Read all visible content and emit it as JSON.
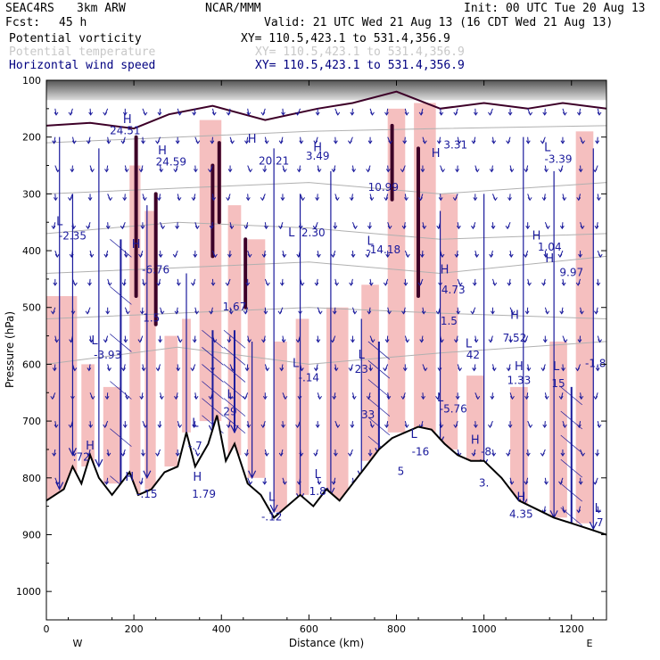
{
  "header": {
    "project": "SEAC4RS",
    "model": "3km ARW",
    "org": "NCAR/MMM",
    "init": "Init: 00 UTC Tue 20 Aug 13",
    "fcst_label": "Fcst:",
    "fcst_value": "45 h",
    "valid": "Valid: 21 UTC Wed 21 Aug 13 (16 CDT Wed 21 Aug 13)"
  },
  "fields": [
    {
      "name": "Potential vorticity",
      "xy": "XY= 110.5,423.1 to 531.4,356.9",
      "color": "#000000"
    },
    {
      "name": "Potential temperature",
      "xy": "XY= 110.5,423.1 to 531.4,356.9",
      "color": "#c8c8c8"
    },
    {
      "name": "Horizontal wind speed",
      "xy": "XY= 110.5,423.1 to 531.4,356.9",
      "color": "#000080"
    }
  ],
  "colors": {
    "wind_vectors": "#1a1a9c",
    "pv_shading": "#f4b8b8",
    "pv_contour": "#3d0028",
    "theta_contour": "#b0b0b0",
    "terrain": "#000000"
  },
  "chart_data": {
    "type": "cross-section",
    "xlabel": "Distance (km)",
    "ylabel": "Pressure (hPa)",
    "x_range": [
      0,
      1280
    ],
    "y_range": [
      1050,
      100
    ],
    "x_ticks": [
      "0",
      "200",
      "400",
      "600",
      "800",
      "1000",
      "1200"
    ],
    "y_ticks": [
      "100",
      "200",
      "300",
      "400",
      "500",
      "600",
      "700",
      "800",
      "900",
      "1000"
    ],
    "x_end_labels": {
      "left": "W",
      "right": "E"
    },
    "terrain_pressure": [
      {
        "x": 0,
        "p": 840
      },
      {
        "x": 40,
        "p": 820
      },
      {
        "x": 60,
        "p": 780
      },
      {
        "x": 80,
        "p": 810
      },
      {
        "x": 100,
        "p": 760
      },
      {
        "x": 120,
        "p": 800
      },
      {
        "x": 150,
        "p": 830
      },
      {
        "x": 170,
        "p": 810
      },
      {
        "x": 190,
        "p": 790
      },
      {
        "x": 210,
        "p": 830
      },
      {
        "x": 240,
        "p": 820
      },
      {
        "x": 270,
        "p": 790
      },
      {
        "x": 300,
        "p": 780
      },
      {
        "x": 320,
        "p": 720
      },
      {
        "x": 340,
        "p": 780
      },
      {
        "x": 370,
        "p": 740
      },
      {
        "x": 390,
        "p": 690
      },
      {
        "x": 410,
        "p": 770
      },
      {
        "x": 430,
        "p": 740
      },
      {
        "x": 460,
        "p": 810
      },
      {
        "x": 490,
        "p": 830
      },
      {
        "x": 520,
        "p": 870
      },
      {
        "x": 550,
        "p": 850
      },
      {
        "x": 580,
        "p": 830
      },
      {
        "x": 610,
        "p": 850
      },
      {
        "x": 640,
        "p": 820
      },
      {
        "x": 670,
        "p": 840
      },
      {
        "x": 700,
        "p": 810
      },
      {
        "x": 730,
        "p": 780
      },
      {
        "x": 760,
        "p": 750
      },
      {
        "x": 790,
        "p": 730
      },
      {
        "x": 820,
        "p": 720
      },
      {
        "x": 850,
        "p": 710
      },
      {
        "x": 880,
        "p": 715
      },
      {
        "x": 910,
        "p": 740
      },
      {
        "x": 940,
        "p": 760
      },
      {
        "x": 970,
        "p": 770
      },
      {
        "x": 1000,
        "p": 770
      },
      {
        "x": 1040,
        "p": 800
      },
      {
        "x": 1080,
        "p": 840
      },
      {
        "x": 1120,
        "p": 855
      },
      {
        "x": 1160,
        "p": 870
      },
      {
        "x": 1200,
        "p": 880
      },
      {
        "x": 1240,
        "p": 890
      },
      {
        "x": 1280,
        "p": 900
      }
    ],
    "theta_isentropes": [
      {
        "points": [
          {
            "x": 0,
            "p": 210
          },
          {
            "x": 300,
            "p": 200
          },
          {
            "x": 600,
            "p": 190
          },
          {
            "x": 900,
            "p": 185
          },
          {
            "x": 1280,
            "p": 180
          }
        ]
      },
      {
        "points": [
          {
            "x": 0,
            "p": 300
          },
          {
            "x": 300,
            "p": 290
          },
          {
            "x": 600,
            "p": 280
          },
          {
            "x": 900,
            "p": 300
          },
          {
            "x": 1280,
            "p": 280
          }
        ]
      },
      {
        "points": [
          {
            "x": 0,
            "p": 370
          },
          {
            "x": 300,
            "p": 350
          },
          {
            "x": 600,
            "p": 360
          },
          {
            "x": 900,
            "p": 380
          },
          {
            "x": 1280,
            "p": 370
          }
        ]
      },
      {
        "points": [
          {
            "x": 0,
            "p": 440
          },
          {
            "x": 300,
            "p": 430
          },
          {
            "x": 600,
            "p": 420
          },
          {
            "x": 900,
            "p": 440
          },
          {
            "x": 1280,
            "p": 410
          }
        ]
      },
      {
        "points": [
          {
            "x": 0,
            "p": 520
          },
          {
            "x": 300,
            "p": 510
          },
          {
            "x": 600,
            "p": 500
          },
          {
            "x": 900,
            "p": 510
          },
          {
            "x": 1280,
            "p": 520
          }
        ]
      },
      {
        "points": [
          {
            "x": 0,
            "p": 600
          },
          {
            "x": 300,
            "p": 570
          },
          {
            "x": 600,
            "p": 600
          },
          {
            "x": 900,
            "p": 580
          },
          {
            "x": 1280,
            "p": 560
          }
        ]
      }
    ],
    "pv_shading_regions": [
      {
        "x0": 0,
        "x1": 70,
        "p0": 480,
        "p1": 840
      },
      {
        "x0": 80,
        "x1": 110,
        "p0": 600,
        "p1": 780
      },
      {
        "x0": 130,
        "x1": 170,
        "p0": 640,
        "p1": 810
      },
      {
        "x0": 190,
        "x1": 215,
        "p0": 250,
        "p1": 830
      },
      {
        "x0": 225,
        "x1": 250,
        "p0": 330,
        "p1": 820
      },
      {
        "x0": 270,
        "x1": 300,
        "p0": 550,
        "p1": 780
      },
      {
        "x0": 310,
        "x1": 330,
        "p0": 520,
        "p1": 720
      },
      {
        "x0": 350,
        "x1": 400,
        "p0": 170,
        "p1": 700
      },
      {
        "x0": 415,
        "x1": 445,
        "p0": 320,
        "p1": 760
      },
      {
        "x0": 460,
        "x1": 500,
        "p0": 380,
        "p1": 800
      },
      {
        "x0": 520,
        "x1": 550,
        "p0": 560,
        "p1": 860
      },
      {
        "x0": 570,
        "x1": 600,
        "p0": 520,
        "p1": 830
      },
      {
        "x0": 640,
        "x1": 690,
        "p0": 500,
        "p1": 840
      },
      {
        "x0": 720,
        "x1": 760,
        "p0": 460,
        "p1": 770
      },
      {
        "x0": 780,
        "x1": 820,
        "p0": 150,
        "p1": 720
      },
      {
        "x0": 840,
        "x1": 890,
        "p0": 140,
        "p1": 720
      },
      {
        "x0": 900,
        "x1": 940,
        "p0": 300,
        "p1": 750
      },
      {
        "x0": 960,
        "x1": 1000,
        "p0": 620,
        "p1": 780
      },
      {
        "x0": 1060,
        "x1": 1100,
        "p0": 640,
        "p1": 850
      },
      {
        "x0": 1150,
        "x1": 1190,
        "p0": 560,
        "p1": 870
      },
      {
        "x0": 1210,
        "x1": 1250,
        "p0": 190,
        "p1": 880
      }
    ],
    "pv_contours": [
      {
        "points": [
          {
            "x": 0,
            "p": 180
          },
          {
            "x": 100,
            "p": 175
          },
          {
            "x": 200,
            "p": 185
          },
          {
            "x": 280,
            "p": 160
          },
          {
            "x": 380,
            "p": 145
          },
          {
            "x": 500,
            "p": 170
          },
          {
            "x": 620,
            "p": 150
          },
          {
            "x": 700,
            "p": 140
          },
          {
            "x": 800,
            "p": 120
          },
          {
            "x": 900,
            "p": 150
          },
          {
            "x": 1000,
            "p": 140
          },
          {
            "x": 1100,
            "p": 150
          },
          {
            "x": 1180,
            "p": 140
          },
          {
            "x": 1280,
            "p": 150
          }
        ]
      },
      {
        "points": [
          {
            "x": 205,
            "p": 200
          },
          {
            "x": 205,
            "p": 480
          }
        ]
      },
      {
        "points": [
          {
            "x": 250,
            "p": 300
          },
          {
            "x": 250,
            "p": 530
          }
        ]
      },
      {
        "points": [
          {
            "x": 380,
            "p": 250
          },
          {
            "x": 380,
            "p": 410
          }
        ]
      },
      {
        "points": [
          {
            "x": 395,
            "p": 210
          },
          {
            "x": 395,
            "p": 350
          }
        ]
      },
      {
        "points": [
          {
            "x": 455,
            "p": 380
          },
          {
            "x": 455,
            "p": 500
          }
        ]
      },
      {
        "points": [
          {
            "x": 790,
            "p": 180
          },
          {
            "x": 790,
            "p": 310
          }
        ]
      },
      {
        "points": [
          {
            "x": 850,
            "p": 220
          },
          {
            "x": 850,
            "p": 480
          }
        ]
      }
    ],
    "wind_columns": [
      {
        "x": 30,
        "top": 200,
        "bottom": 820,
        "strong": false
      },
      {
        "x": 60,
        "top": 300,
        "bottom": 760,
        "strong": false
      },
      {
        "x": 120,
        "top": 220,
        "bottom": 780,
        "strong": false
      },
      {
        "x": 170,
        "top": 380,
        "bottom": 880,
        "strong": true
      },
      {
        "x": 230,
        "top": 320,
        "bottom": 800,
        "strong": false
      },
      {
        "x": 320,
        "top": 440,
        "bottom": 760,
        "strong": false
      },
      {
        "x": 380,
        "top": 540,
        "bottom": 720,
        "strong": true
      },
      {
        "x": 430,
        "top": 540,
        "bottom": 720,
        "strong": true
      },
      {
        "x": 470,
        "top": 560,
        "bottom": 800,
        "strong": false
      },
      {
        "x": 520,
        "top": 220,
        "bottom": 860,
        "strong": false
      },
      {
        "x": 580,
        "top": 300,
        "bottom": 840,
        "strong": false
      },
      {
        "x": 650,
        "top": 260,
        "bottom": 830,
        "strong": false
      },
      {
        "x": 720,
        "top": 520,
        "bottom": 800,
        "strong": false
      },
      {
        "x": 760,
        "top": 560,
        "bottom": 760,
        "strong": true
      },
      {
        "x": 900,
        "top": 330,
        "bottom": 740,
        "strong": false
      },
      {
        "x": 1000,
        "top": 300,
        "bottom": 780,
        "strong": false
      },
      {
        "x": 1090,
        "top": 200,
        "bottom": 850,
        "strong": false
      },
      {
        "x": 1160,
        "top": 260,
        "bottom": 870,
        "strong": false
      },
      {
        "x": 1200,
        "top": 640,
        "bottom": 895,
        "strong": true
      },
      {
        "x": 1250,
        "top": 220,
        "bottom": 890,
        "strong": false
      }
    ],
    "annotations": [
      {
        "text": "H",
        "x": 185,
        "p": 175
      },
      {
        "text": "24.51",
        "x": 180,
        "p": 195
      },
      {
        "text": "H",
        "x": 265,
        "p": 230
      },
      {
        "text": "24.59",
        "x": 285,
        "p": 250
      },
      {
        "text": "L",
        "x": 30,
        "p": 355
      },
      {
        "text": "-2.35",
        "x": 60,
        "p": 380
      },
      {
        "text": "-6.76",
        "x": 250,
        "p": 440
      },
      {
        "text": "1.5",
        "x": 240,
        "p": 525
      },
      {
        "text": "L",
        "x": 110,
        "p": 565
      },
      {
        "text": "-3.93",
        "x": 140,
        "p": 590
      },
      {
        "text": "H",
        "x": 205,
        "p": 395
      },
      {
        "text": "1.67",
        "x": 430,
        "p": 505
      },
      {
        "text": "H",
        "x": 470,
        "p": 210
      },
      {
        "text": "20.21",
        "x": 520,
        "p": 248
      },
      {
        "text": "3.49",
        "x": 620,
        "p": 240
      },
      {
        "text": "2.30",
        "x": 610,
        "p": 375
      },
      {
        "text": "H",
        "x": 620,
        "p": 225
      },
      {
        "text": "L",
        "x": 560,
        "p": 375
      },
      {
        "text": "L",
        "x": 740,
        "p": 390
      },
      {
        "text": "-14.18",
        "x": 770,
        "p": 405
      },
      {
        "text": "10.99",
        "x": 770,
        "p": 295
      },
      {
        "text": "3.31",
        "x": 935,
        "p": 220
      },
      {
        "text": "H",
        "x": 890,
        "p": 235
      },
      {
        "text": "L",
        "x": 1145,
        "p": 225
      },
      {
        "text": "-3.39",
        "x": 1170,
        "p": 245
      },
      {
        "text": "H",
        "x": 1120,
        "p": 380
      },
      {
        "text": "1.04",
        "x": 1150,
        "p": 400
      },
      {
        "text": "H",
        "x": 1150,
        "p": 420
      },
      {
        "text": "9.97",
        "x": 1200,
        "p": 445
      },
      {
        "text": "H",
        "x": 910,
        "p": 440
      },
      {
        "text": "4.73",
        "x": 930,
        "p": 475
      },
      {
        "text": "1.5",
        "x": 920,
        "p": 530
      },
      {
        "text": "H",
        "x": 1070,
        "p": 520
      },
      {
        "text": "7.52",
        "x": 1070,
        "p": 560
      },
      {
        "text": "L",
        "x": 965,
        "p": 570
      },
      {
        "text": "42",
        "x": 975,
        "p": 590
      },
      {
        "text": "H",
        "x": 1080,
        "p": 610
      },
      {
        "text": "1.33",
        "x": 1080,
        "p": 635
      },
      {
        "text": "L",
        "x": 1165,
        "p": 610
      },
      {
        "text": "15",
        "x": 1170,
        "p": 640
      },
      {
        "text": "-1.8",
        "x": 1255,
        "p": 605
      },
      {
        "text": "L",
        "x": 570,
        "p": 605
      },
      {
        "text": "-.14",
        "x": 600,
        "p": 630
      },
      {
        "text": "L",
        "x": 720,
        "p": 590
      },
      {
        "text": "23",
        "x": 720,
        "p": 615
      },
      {
        "text": "L",
        "x": 900,
        "p": 665
      },
      {
        "text": "-5.76",
        "x": 930,
        "p": 685
      },
      {
        "text": "33",
        "x": 735,
        "p": 695
      },
      {
        "text": "L",
        "x": 840,
        "p": 730
      },
      {
        "text": "-16",
        "x": 855,
        "p": 760
      },
      {
        "text": "H",
        "x": 980,
        "p": 740
      },
      {
        "text": "-8",
        "x": 1005,
        "p": 760
      },
      {
        "text": "5",
        "x": 810,
        "p": 795
      },
      {
        "text": "3.",
        "x": 1000,
        "p": 815
      },
      {
        "text": "L",
        "x": 340,
        "p": 710
      },
      {
        "text": "-.7",
        "x": 340,
        "p": 750
      },
      {
        "text": "L",
        "x": 420,
        "p": 660
      },
      {
        "text": "29",
        "x": 420,
        "p": 690
      },
      {
        "text": "H",
        "x": 100,
        "p": 750
      },
      {
        "text": ".72",
        "x": 80,
        "p": 770
      },
      {
        "text": "H",
        "x": 190,
        "p": 805
      },
      {
        "text": "-.15",
        "x": 230,
        "p": 835
      },
      {
        "text": "H",
        "x": 345,
        "p": 805
      },
      {
        "text": "1.79",
        "x": 360,
        "p": 835
      },
      {
        "text": "L",
        "x": 515,
        "p": 840
      },
      {
        "text": "-.12",
        "x": 515,
        "p": 875
      },
      {
        "text": "L",
        "x": 620,
        "p": 800
      },
      {
        "text": "1.8",
        "x": 620,
        "p": 830
      },
      {
        "text": "H",
        "x": 1085,
        "p": 840
      },
      {
        "text": "4.35",
        "x": 1085,
        "p": 870
      },
      {
        "text": "L",
        "x": 1260,
        "p": 860
      },
      {
        "text": "7",
        "x": 1265,
        "p": 885
      }
    ]
  }
}
